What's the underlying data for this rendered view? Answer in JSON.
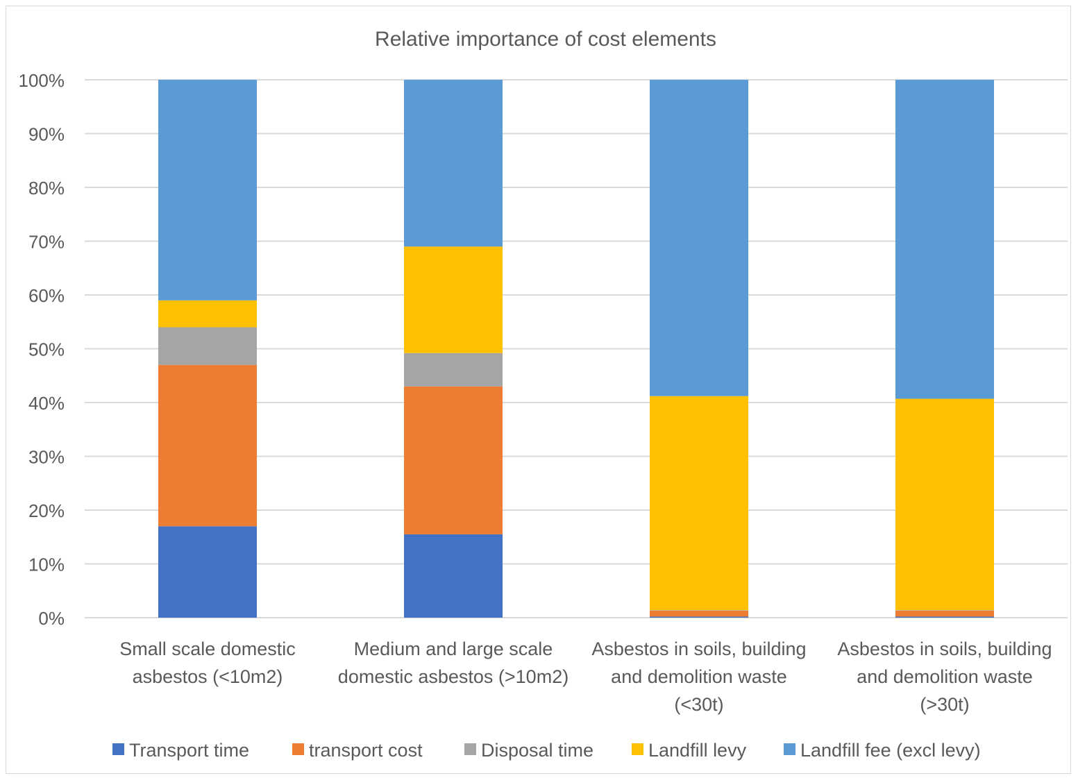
{
  "chart_data": {
    "type": "bar",
    "stacked": "percent",
    "title": "Relative importance of cost elements",
    "categories": [
      [
        "Small scale domestic",
        "asbestos (<10m2)"
      ],
      [
        "Medium and large scale",
        "domestic asbestos (>10m2)"
      ],
      [
        "Asbestos in soils, building",
        "and demolition waste",
        "(<30t)"
      ],
      [
        "Asbestos in soils, building",
        "and demolition waste",
        "(>30t)"
      ]
    ],
    "y_ticks": [
      "0%",
      "10%",
      "20%",
      "30%",
      "40%",
      "50%",
      "60%",
      "70%",
      "80%",
      "90%",
      "100%"
    ],
    "ylim": [
      0,
      100
    ],
    "grid": true,
    "legend_position": "bottom",
    "series": [
      {
        "name": "Transport time",
        "color": "#4472c4",
        "values": [
          17,
          15.5,
          0.2,
          0.2
        ]
      },
      {
        "name": "transport cost",
        "color": "#ed7d31",
        "values": [
          30,
          27.5,
          1.1,
          1.1
        ]
      },
      {
        "name": "Disposal time",
        "color": "#a5a5a5",
        "values": [
          7,
          6.2,
          0.1,
          0.1
        ]
      },
      {
        "name": "Landfill levy",
        "color": "#ffc000",
        "values": [
          5,
          19.8,
          39.8,
          39.3
        ]
      },
      {
        "name": "Landfill fee (excl levy)",
        "color": "#5b9bd5",
        "values": [
          41,
          31,
          58.8,
          59.3
        ]
      }
    ]
  }
}
